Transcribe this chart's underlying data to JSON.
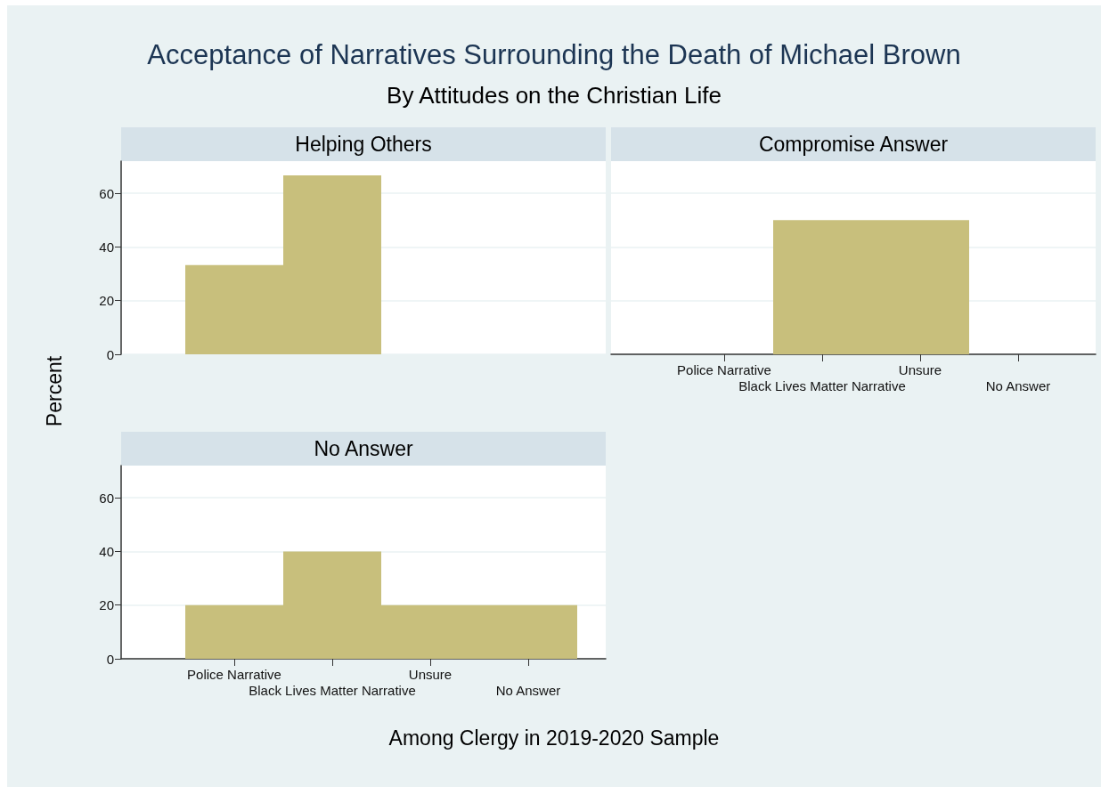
{
  "chart_data": [
    {
      "type": "other",
      "title": "Acceptance of Narratives Surrounding the Death of Michael Brown",
      "subtitle": "By Attitudes on the Christian Life",
      "annotations": [
        "Among Clergy in 2019-2020 Sample"
      ]
    },
    {
      "type": "bar",
      "title": "Helping Others",
      "ylabel": "Percent",
      "categories": [
        null,
        null,
        null,
        null
      ],
      "values": [
        33.3,
        66.7,
        0,
        0
      ],
      "color": "#c8bf7c",
      "ylim": [
        0,
        72
      ],
      "yticks": [
        0,
        20,
        40,
        60
      ],
      "grid": "y",
      "tick_labels": "y"
    },
    {
      "type": "bar",
      "title": "Compromise Answer",
      "categories": [
        "Police Narrative",
        "Black Lives Matter Narrative",
        "Unsure",
        "No Answer"
      ],
      "values": [
        0,
        50,
        50,
        0
      ],
      "color": "#c8bf7c",
      "ylim": [
        0,
        72
      ],
      "yticks": [
        0,
        20,
        40,
        60
      ],
      "grid": "y",
      "tick_labels": "x"
    },
    {
      "type": "bar",
      "title": "No Answer",
      "categories": [
        "Police Narrative",
        "Black Lives Matter Narrative",
        "Unsure",
        "No Answer"
      ],
      "values": [
        20,
        40,
        20,
        20
      ],
      "color": "#c8bf7c",
      "ylim": [
        0,
        72
      ],
      "yticks": [
        0,
        20,
        40,
        60
      ],
      "grid": "y"
    }
  ]
}
